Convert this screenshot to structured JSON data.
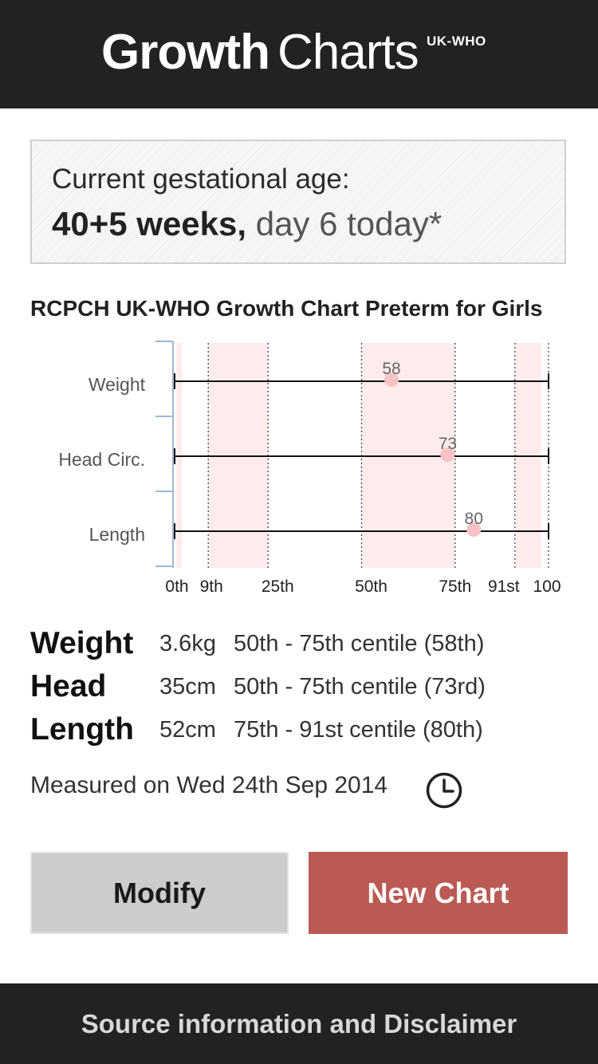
{
  "header": {
    "logo_growth": "Growth",
    "logo_charts": "Charts",
    "logo_suffix": "UK-WHO"
  },
  "gestational_age": {
    "label": "Current gestational age:",
    "weeks": "40+5 weeks,",
    "day": "day 6 today*"
  },
  "chart_title": "RCPCH UK-WHO Growth Chart Preterm for Girls",
  "chart_data": {
    "type": "scatter",
    "title": "RCPCH UK-WHO Growth Chart Preterm for Girls",
    "x_ticks": [
      {
        "label": "0th",
        "value": 0
      },
      {
        "label": "9th",
        "value": 9
      },
      {
        "label": "25th",
        "value": 25
      },
      {
        "label": "50th",
        "value": 50
      },
      {
        "label": "75th",
        "value": 75
      },
      {
        "label": "91st",
        "value": 91
      },
      {
        "label": "100",
        "value": 100
      }
    ],
    "xlim": [
      0,
      100
    ],
    "shaded_bands": [
      [
        0.4,
        2
      ],
      [
        9,
        25
      ],
      [
        50,
        75
      ],
      [
        91,
        98
      ]
    ],
    "band_color": "#fdeceb",
    "point_color": "#f7c3c6",
    "series": [
      {
        "label": "Weight",
        "value": 58
      },
      {
        "label": "Head Circ.",
        "value": 73
      },
      {
        "label": "Length",
        "value": 80
      }
    ]
  },
  "summary": [
    {
      "name": "Weight",
      "value": "3.6kg",
      "centile": "50th - 75th centile (58th)"
    },
    {
      "name": "Head",
      "value": "35cm",
      "centile": "50th - 75th centile (73rd)"
    },
    {
      "name": "Length",
      "value": "52cm",
      "centile": "75th - 91st centile (80th)"
    }
  ],
  "measured": "Measured on Wed 24th Sep 2014",
  "clock_icon": "clock-icon",
  "buttons": {
    "modify": "Modify",
    "new_chart": "New Chart"
  },
  "footer": "Source information and Disclaimer",
  "colors": {
    "header_bg": "#222222",
    "new_chart_bg": "#bb5a55",
    "modify_bg": "#cccccc"
  }
}
